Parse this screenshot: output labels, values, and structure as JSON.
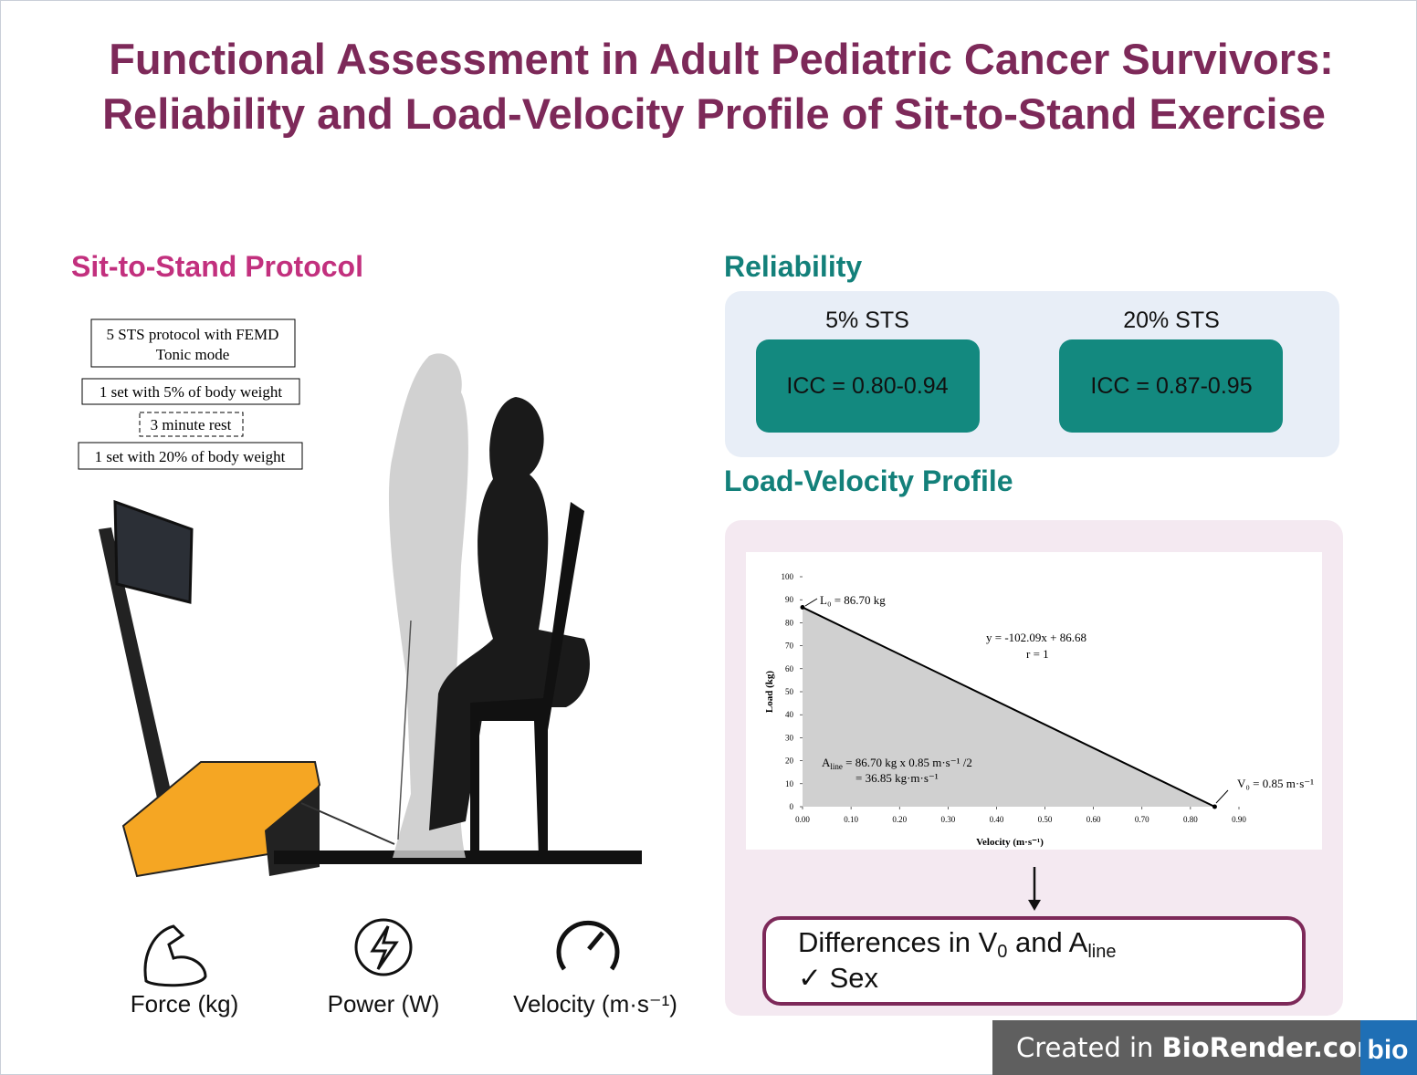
{
  "title": [
    "Functional Assessment in Adult Pediatric Cancer Survivors:",
    "Reliability and Load-Velocity Profile of Sit-to-Stand Exercise"
  ],
  "protocol": {
    "heading": "Sit-to-Stand Protocol",
    "steps": [
      "5 STS protocol with FEMD",
      "Tonic mode",
      "1 set with 5% of body weight",
      "3 minute rest",
      "1 set with 20% of body weight"
    ],
    "outputs": [
      "Force (kg)",
      "Power (W)",
      "Velocity (m·s⁻¹)"
    ]
  },
  "reliability": {
    "heading": "Reliability",
    "items": [
      {
        "label": "5% STS",
        "value": "ICC = 0.80-0.94"
      },
      {
        "label": "20% STS",
        "value": "ICC = 0.87-0.95"
      }
    ]
  },
  "profile": {
    "heading": "Load-Velocity Profile",
    "result": {
      "line1": [
        "Differences in V",
        "0",
        " and A",
        "line"
      ],
      "line2": "✓ Sex"
    }
  },
  "chart_data": {
    "type": "line",
    "x_label": "Velocity (m·s⁻¹)",
    "y_label": "Load (kg)",
    "x": [
      0,
      0.85
    ],
    "series": [
      {
        "values": [
          86.7,
          0
        ],
        "color": "#000000"
      }
    ],
    "fill": "#d0d0d0",
    "xlim": [
      0,
      0.9
    ],
    "ylim": [
      0,
      100
    ],
    "xticks": [
      {
        "value": 0,
        "label": "0.00"
      },
      {
        "value": 0.1,
        "label": "0.10"
      },
      {
        "value": 0.2,
        "label": "0.20"
      },
      {
        "value": 0.3,
        "label": "0.30"
      },
      {
        "value": 0.4,
        "label": "0.40"
      },
      {
        "value": 0.5,
        "label": "0.50"
      },
      {
        "value": 0.6,
        "label": "0.60"
      },
      {
        "value": 0.7,
        "label": "0.70"
      },
      {
        "value": 0.8,
        "label": "0.80"
      },
      {
        "value": 0.9,
        "label": "0.90"
      }
    ],
    "yticks": [
      0,
      10,
      20,
      30,
      40,
      50,
      60,
      70,
      80,
      90,
      100
    ],
    "annotations": {
      "l0": "L₀ = 86.70 kg",
      "equation": "y = -102.09x + 86.68",
      "r": "r = 1",
      "area": [
        "A",
        "line",
        " = 86.70 kg x 0.85 m·s⁻¹ /2"
      ],
      "area_result": "= 36.85 kg·m·s⁻¹",
      "v0": "V₀ = 0.85 m·s⁻¹"
    }
  },
  "footer": {
    "text": [
      "Created in ",
      "BioRender.com"
    ],
    "logo": "bio"
  }
}
